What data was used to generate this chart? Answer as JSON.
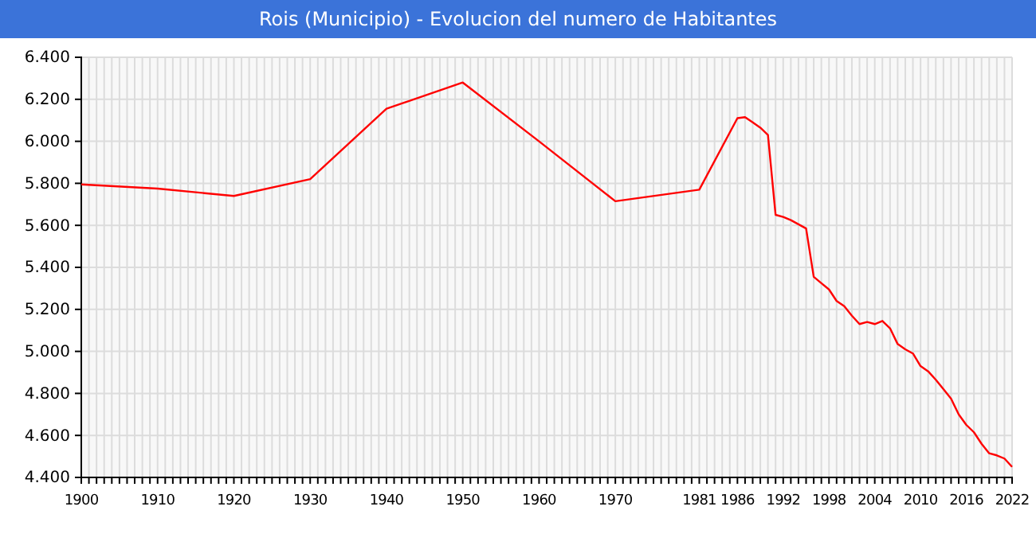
{
  "chart_data": {
    "type": "line",
    "title": "Rois (Municipio) - Evolucion del numero de Habitantes",
    "x": [
      1900,
      1910,
      1920,
      1930,
      1940,
      1950,
      1960,
      1970,
      1981,
      1986,
      1987,
      1988,
      1989,
      1990,
      1991,
      1992,
      1993,
      1994,
      1995,
      1996,
      1997,
      1998,
      1999,
      2000,
      2001,
      2002,
      2003,
      2004,
      2005,
      2006,
      2007,
      2008,
      2009,
      2010,
      2011,
      2012,
      2013,
      2014,
      2015,
      2016,
      2017,
      2018,
      2019,
      2020,
      2021,
      2022
    ],
    "series": [
      {
        "color": "#ff0000",
        "values": [
          5795,
          5775,
          5740,
          5820,
          6155,
          6280,
          6000,
          5715,
          5770,
          6110,
          6115,
          6090,
          6065,
          6030,
          5650,
          5640,
          5625,
          5605,
          5585,
          5355,
          5325,
          5295,
          5240,
          5215,
          5170,
          5130,
          5140,
          5130,
          5145,
          5110,
          5035,
          5010,
          4990,
          4930,
          4905,
          4865,
          4820,
          4775,
          4700,
          4650,
          4615,
          4560,
          4515,
          4505,
          4490,
          4450
        ]
      }
    ],
    "xlim": [
      1900,
      2022
    ],
    "xticks": [
      1900,
      {
        "value": 1901,
        "label": null
      },
      {
        "value": 1902,
        "label": null
      },
      {
        "value": 1903,
        "label": null
      },
      {
        "value": 1904,
        "label": null
      },
      {
        "value": 1905,
        "label": null
      },
      {
        "value": 1906,
        "label": null
      },
      {
        "value": 1907,
        "label": null
      },
      {
        "value": 1908,
        "label": null
      },
      {
        "value": 1909,
        "label": null
      },
      1910,
      {
        "value": 1911,
        "label": null
      },
      {
        "value": 1912,
        "label": null
      },
      {
        "value": 1913,
        "label": null
      },
      {
        "value": 1914,
        "label": null
      },
      {
        "value": 1915,
        "label": null
      },
      {
        "value": 1916,
        "label": null
      },
      {
        "value": 1917,
        "label": null
      },
      {
        "value": 1918,
        "label": null
      },
      {
        "value": 1919,
        "label": null
      },
      1920,
      {
        "value": 1921,
        "label": null
      },
      {
        "value": 1922,
        "label": null
      },
      {
        "value": 1923,
        "label": null
      },
      {
        "value": 1924,
        "label": null
      },
      {
        "value": 1925,
        "label": null
      },
      {
        "value": 1926,
        "label": null
      },
      {
        "value": 1927,
        "label": null
      },
      {
        "value": 1928,
        "label": null
      },
      {
        "value": 1929,
        "label": null
      },
      1930,
      {
        "value": 1931,
        "label": null
      },
      {
        "value": 1932,
        "label": null
      },
      {
        "value": 1933,
        "label": null
      },
      {
        "value": 1934,
        "label": null
      },
      {
        "value": 1935,
        "label": null
      },
      {
        "value": 1936,
        "label": null
      },
      {
        "value": 1937,
        "label": null
      },
      {
        "value": 1938,
        "label": null
      },
      {
        "value": 1939,
        "label": null
      },
      1940,
      {
        "value": 1941,
        "label": null
      },
      {
        "value": 1942,
        "label": null
      },
      {
        "value": 1943,
        "label": null
      },
      {
        "value": 1944,
        "label": null
      },
      {
        "value": 1945,
        "label": null
      },
      {
        "value": 1946,
        "label": null
      },
      {
        "value": 1947,
        "label": null
      },
      {
        "value": 1948,
        "label": null
      },
      {
        "value": 1949,
        "label": null
      },
      1950,
      {
        "value": 1951,
        "label": null
      },
      {
        "value": 1952,
        "label": null
      },
      {
        "value": 1953,
        "label": null
      },
      {
        "value": 1954,
        "label": null
      },
      {
        "value": 1955,
        "label": null
      },
      {
        "value": 1956,
        "label": null
      },
      {
        "value": 1957,
        "label": null
      },
      {
        "value": 1958,
        "label": null
      },
      {
        "value": 1959,
        "label": null
      },
      1960,
      {
        "value": 1961,
        "label": null
      },
      {
        "value": 1962,
        "label": null
      },
      {
        "value": 1963,
        "label": null
      },
      {
        "value": 1964,
        "label": null
      },
      {
        "value": 1965,
        "label": null
      },
      {
        "value": 1966,
        "label": null
      },
      {
        "value": 1967,
        "label": null
      },
      {
        "value": 1968,
        "label": null
      },
      {
        "value": 1969,
        "label": null
      },
      1970,
      {
        "value": 1971,
        "label": null
      },
      {
        "value": 1972,
        "label": null
      },
      {
        "value": 1973,
        "label": null
      },
      {
        "value": 1974,
        "label": null
      },
      {
        "value": 1975,
        "label": null
      },
      {
        "value": 1976,
        "label": null
      },
      {
        "value": 1977,
        "label": null
      },
      {
        "value": 1978,
        "label": null
      },
      {
        "value": 1979,
        "label": null
      },
      {
        "value": 1980,
        "label": null
      },
      1981,
      {
        "value": 1982,
        "label": null
      },
      {
        "value": 1983,
        "label": null
      },
      {
        "value": 1984,
        "label": null
      },
      {
        "value": 1985,
        "label": null
      },
      1986,
      {
        "value": 1987,
        "label": null
      },
      {
        "value": 1988,
        "label": null
      },
      {
        "value": 1989,
        "label": null
      },
      {
        "value": 1990,
        "label": null
      },
      {
        "value": 1991,
        "label": null
      },
      1992,
      {
        "value": 1993,
        "label": null
      },
      {
        "value": 1994,
        "label": null
      },
      {
        "value": 1995,
        "label": null
      },
      {
        "value": 1996,
        "label": null
      },
      {
        "value": 1997,
        "label": null
      },
      1998,
      {
        "value": 1999,
        "label": null
      },
      {
        "value": 2000,
        "label": null
      },
      {
        "value": 2001,
        "label": null
      },
      {
        "value": 2002,
        "label": null
      },
      {
        "value": 2003,
        "label": null
      },
      2004,
      {
        "value": 2005,
        "label": null
      },
      {
        "value": 2006,
        "label": null
      },
      {
        "value": 2007,
        "label": null
      },
      {
        "value": 2008,
        "label": null
      },
      {
        "value": 2009,
        "label": null
      },
      2010,
      {
        "value": 2011,
        "label": null
      },
      {
        "value": 2012,
        "label": null
      },
      {
        "value": 2013,
        "label": null
      },
      {
        "value": 2014,
        "label": null
      },
      {
        "value": 2015,
        "label": null
      },
      2016,
      {
        "value": 2017,
        "label": null
      },
      {
        "value": 2018,
        "label": null
      },
      {
        "value": 2019,
        "label": null
      },
      {
        "value": 2020,
        "label": null
      },
      {
        "value": 2021,
        "label": null
      },
      2022
    ],
    "ylim": [
      4400,
      6400
    ],
    "yticks": [
      {
        "value": 4400,
        "label": "4.400"
      },
      {
        "value": 4600,
        "label": "4.600"
      },
      {
        "value": 4800,
        "label": "4.800"
      },
      {
        "value": 5000,
        "label": "5.000"
      },
      {
        "value": 5200,
        "label": "5.200"
      },
      {
        "value": 5400,
        "label": "5.400"
      },
      {
        "value": 5600,
        "label": "5.600"
      },
      {
        "value": 5800,
        "label": "5.800"
      },
      {
        "value": 6000,
        "label": "6.000"
      },
      {
        "value": 6200,
        "label": "6.200"
      },
      {
        "value": 6400,
        "label": "6.400"
      }
    ],
    "grid": true,
    "marker": "none",
    "line_style": "solid"
  }
}
